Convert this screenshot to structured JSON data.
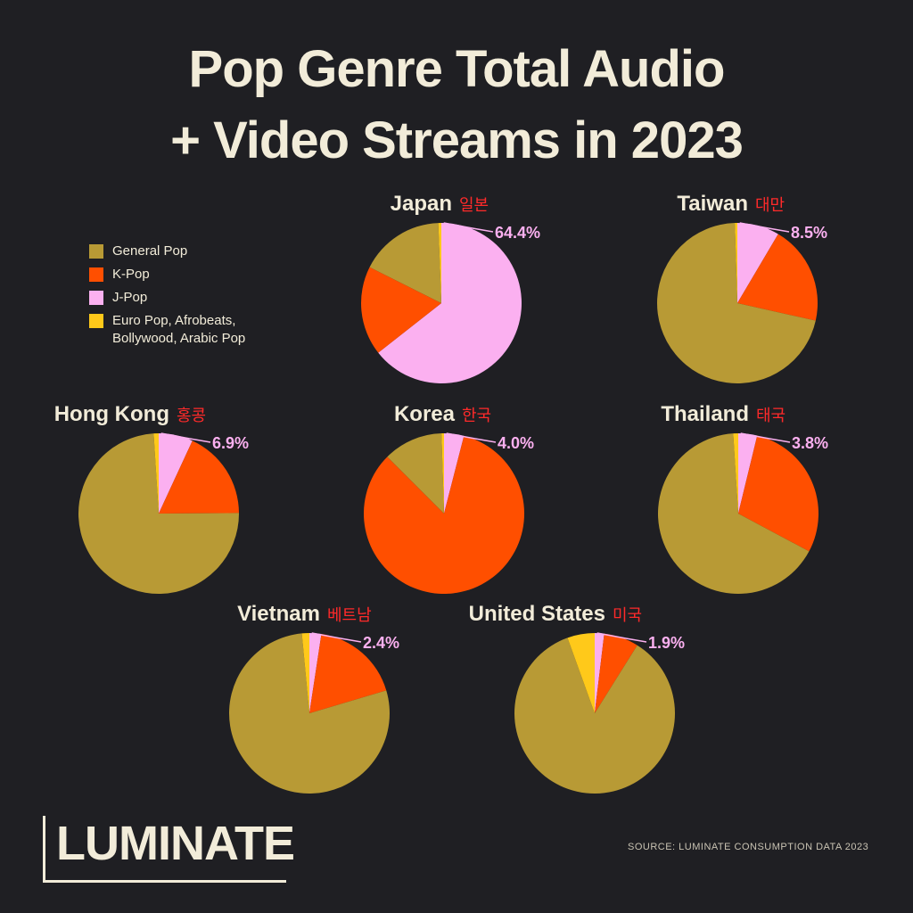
{
  "title": "Pop Genre Total Audio + Video Streams in 2023",
  "source": "SOURCE: LUMINATE CONSUMPTION DATA 2023",
  "logo": "LUMINATE",
  "chart_data": [
    {
      "type": "pie",
      "title": "Japan",
      "subtitle": "일본",
      "categories": [
        "J-Pop",
        "K-Pop",
        "General Pop",
        "Euro Pop, Afrobeats, Bollywood, Arabic Pop"
      ],
      "values": [
        64.4,
        18,
        17,
        0.6
      ],
      "value_labels": [
        "64.4%",
        null,
        null,
        null
      ],
      "colors": [
        "#fbb0f0",
        "#ff4f00",
        "#b89a35",
        "#ffc91a"
      ]
    },
    {
      "type": "pie",
      "title": "Taiwan",
      "subtitle": "대만",
      "categories": [
        "J-Pop",
        "K-Pop",
        "General Pop",
        "Euro Pop, Afrobeats, Bollywood, Arabic Pop"
      ],
      "values": [
        8.5,
        20,
        71,
        0.5
      ],
      "value_labels": [
        "8.5%",
        null,
        null,
        null
      ],
      "colors": [
        "#fbb0f0",
        "#ff4f00",
        "#b89a35",
        "#ffc91a"
      ]
    },
    {
      "type": "pie",
      "title": "Hong Kong",
      "subtitle": "홍콩",
      "categories": [
        "J-Pop",
        "K-Pop",
        "General Pop",
        "Euro Pop, Afrobeats, Bollywood, Arabic Pop"
      ],
      "values": [
        6.9,
        18,
        74.1,
        1
      ],
      "value_labels": [
        "6.9%",
        null,
        null,
        null
      ],
      "colors": [
        "#fbb0f0",
        "#ff4f00",
        "#b89a35",
        "#ffc91a"
      ]
    },
    {
      "type": "pie",
      "title": "Korea",
      "subtitle": "한국",
      "categories": [
        "J-Pop",
        "K-Pop",
        "General Pop",
        "Euro Pop, Afrobeats, Bollywood, Arabic Pop"
      ],
      "values": [
        4.0,
        83.5,
        12,
        0.5
      ],
      "value_labels": [
        "4.0%",
        null,
        null,
        null
      ],
      "colors": [
        "#fbb0f0",
        "#ff4f00",
        "#b89a35",
        "#ffc91a"
      ]
    },
    {
      "type": "pie",
      "title": "Thailand",
      "subtitle": "태국",
      "categories": [
        "J-Pop",
        "K-Pop",
        "General Pop",
        "Euro Pop, Afrobeats, Bollywood, Arabic Pop"
      ],
      "values": [
        3.8,
        29,
        66.2,
        1
      ],
      "value_labels": [
        "3.8%",
        null,
        null,
        null
      ],
      "colors": [
        "#fbb0f0",
        "#ff4f00",
        "#b89a35",
        "#ffc91a"
      ]
    },
    {
      "type": "pie",
      "title": "Vietnam",
      "subtitle": "베트남",
      "categories": [
        "J-Pop",
        "K-Pop",
        "General Pop",
        "Euro Pop, Afrobeats, Bollywood, Arabic Pop"
      ],
      "values": [
        2.4,
        18,
        78.1,
        1.5
      ],
      "value_labels": [
        "2.4%",
        null,
        null,
        null
      ],
      "colors": [
        "#fbb0f0",
        "#ff4f00",
        "#b89a35",
        "#ffc91a"
      ]
    },
    {
      "type": "pie",
      "title": "United States",
      "subtitle": "미국",
      "categories": [
        "J-Pop",
        "K-Pop",
        "General Pop",
        "Euro Pop, Afrobeats, Bollywood, Arabic Pop"
      ],
      "values": [
        1.9,
        7,
        85.6,
        5.5
      ],
      "value_labels": [
        "1.9%",
        null,
        null,
        null
      ],
      "colors": [
        "#fbb0f0",
        "#ff4f00",
        "#b89a35",
        "#ffc91a"
      ]
    }
  ]
}
